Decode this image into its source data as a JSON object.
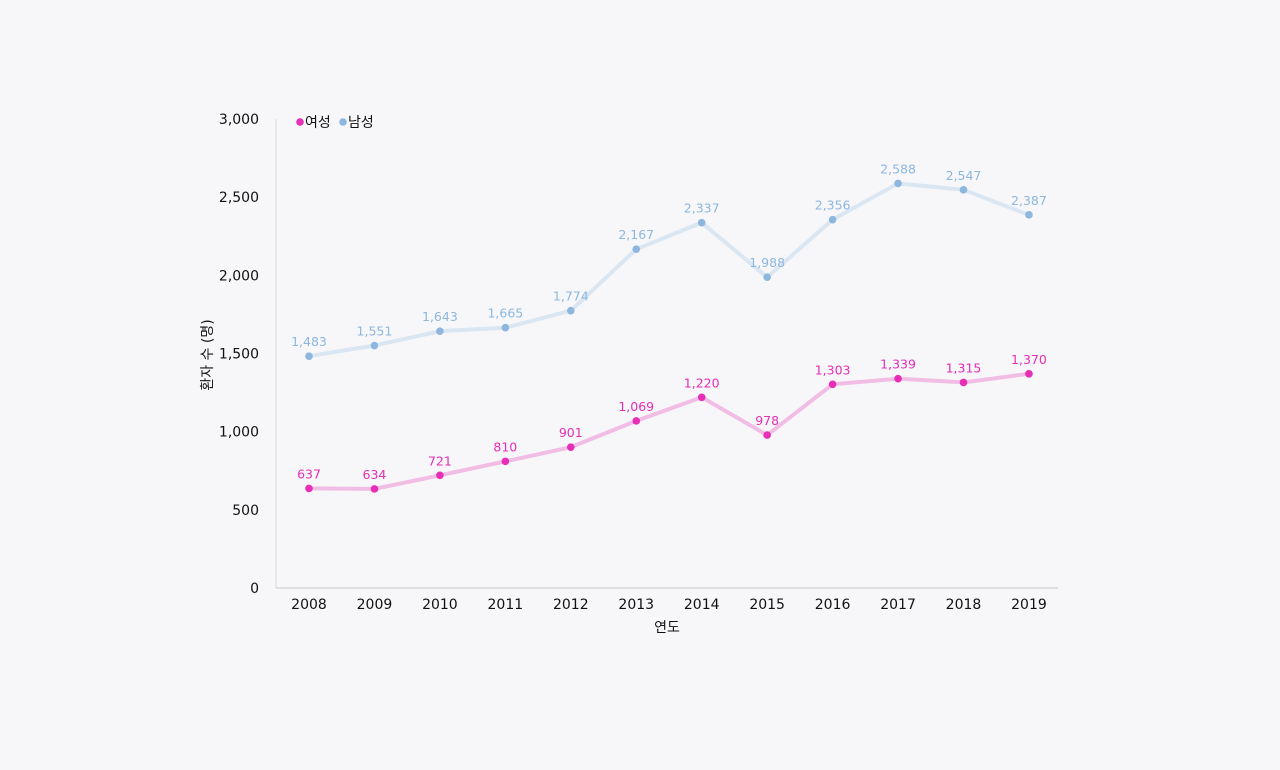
{
  "chart_data": {
    "type": "line",
    "xlabel": "연도",
    "ylabel": "환자 수 (명)",
    "ylim": [
      0,
      3000
    ],
    "yticks": [
      0,
      500,
      1000,
      1500,
      2000,
      2500,
      3000
    ],
    "ytick_labels": [
      "0",
      "500",
      "1,000",
      "1,500",
      "2,000",
      "2,500",
      "3,000"
    ],
    "categories": [
      "2008",
      "2009",
      "2010",
      "2011",
      "2012",
      "2013",
      "2014",
      "2015",
      "2016",
      "2017",
      "2018",
      "2019"
    ],
    "legend_position": "top-left",
    "grid": false,
    "series": [
      {
        "name": "여성",
        "color": "#e62eb6",
        "line_color": "#f2bde4",
        "values": [
          637,
          634,
          721,
          810,
          901,
          1069,
          1220,
          978,
          1303,
          1339,
          1315,
          1370
        ],
        "labels": [
          "637",
          "634",
          "721",
          "810",
          "901",
          "1,069",
          "1,220",
          "978",
          "1,303",
          "1,339",
          "1,315",
          "1,370"
        ]
      },
      {
        "name": "남성",
        "color": "#8db7df",
        "line_color": "#dae6f2",
        "values": [
          1483,
          1551,
          1643,
          1665,
          1774,
          2167,
          2337,
          1988,
          2356,
          2588,
          2547,
          2387
        ],
        "labels": [
          "1,483",
          "1,551",
          "1,643",
          "1,665",
          "1,774",
          "2,167",
          "2,337",
          "1,988",
          "2,356",
          "2,588",
          "2,547",
          "2,387"
        ]
      }
    ]
  }
}
